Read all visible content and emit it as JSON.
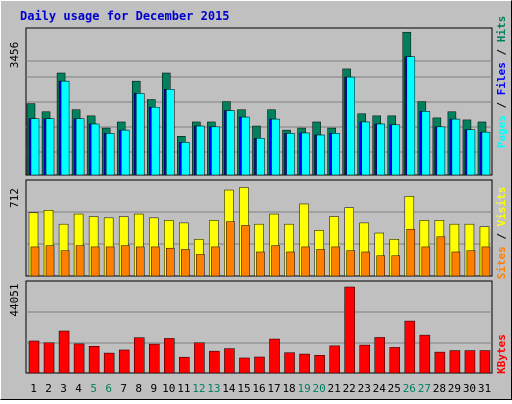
{
  "colors": {
    "background": "#c0c0c0",
    "plot_bg": "#c0c0c0",
    "grid": "#808080",
    "title": "#0000cc",
    "hits": "#00805c",
    "files": "#0000ff",
    "pages": "#00ffff",
    "visits": "#ffff00",
    "sites": "#ff8000",
    "kbytes": "#ff0000",
    "weekend_label": "#00805c",
    "weekday_label": "#000000"
  },
  "chart_data": [
    {
      "type": "bar",
      "title": "Daily usage for December 2015",
      "ymax_label": "3456",
      "ylabel": {
        "pages": "Pages",
        "files": "Files",
        "hits": "Hits",
        "sep": " / "
      },
      "categories": [
        "1",
        "2",
        "3",
        "4",
        "5",
        "6",
        "7",
        "8",
        "9",
        "10",
        "11",
        "12",
        "13",
        "14",
        "15",
        "16",
        "17",
        "18",
        "19",
        "20",
        "21",
        "22",
        "23",
        "24",
        "25",
        "26",
        "27",
        "28",
        "29",
        "30",
        "31"
      ],
      "weekend": [
        5,
        6,
        12,
        13,
        19,
        20,
        26,
        27
      ],
      "ylim": [
        0,
        3456
      ],
      "series": [
        {
          "name": "Hits",
          "values": [
            1750,
            1550,
            2500,
            1600,
            1450,
            1150,
            1300,
            2300,
            1850,
            2500,
            950,
            1300,
            1300,
            1800,
            1600,
            1200,
            1600,
            1100,
            1150,
            1300,
            1150,
            2600,
            1500,
            1450,
            1450,
            3500,
            1800,
            1400,
            1550,
            1350,
            1300
          ]
        },
        {
          "name": "Files",
          "values": [
            1380,
            1380,
            2300,
            1380,
            1250,
            1020,
            1100,
            2000,
            1660,
            2100,
            800,
            1200,
            1180,
            1580,
            1420,
            900,
            1370,
            1020,
            1030,
            980,
            1020,
            2400,
            1300,
            1250,
            1230,
            2900,
            1560,
            1180,
            1370,
            1110,
            1050
          ]
        },
        {
          "name": "Pages",
          "values": [
            1380,
            1380,
            2300,
            1380,
            1250,
            1020,
            1100,
            2000,
            1660,
            2100,
            800,
            1200,
            1180,
            1580,
            1420,
            900,
            1370,
            1020,
            1030,
            980,
            1020,
            2400,
            1300,
            1250,
            1230,
            2900,
            1560,
            1180,
            1370,
            1110,
            1050
          ]
        }
      ]
    },
    {
      "type": "bar",
      "ymax_label": "712",
      "ylabel": {
        "sites": "Sites",
        "visits": "Visits",
        "sep": " / "
      },
      "categories": [
        "1",
        "2",
        "3",
        "4",
        "5",
        "6",
        "7",
        "8",
        "9",
        "10",
        "11",
        "12",
        "13",
        "14",
        "15",
        "16",
        "17",
        "18",
        "19",
        "20",
        "21",
        "22",
        "23",
        "24",
        "25",
        "26",
        "27",
        "28",
        "29",
        "30",
        "31"
      ],
      "ylim": [
        0,
        712
      ],
      "series": [
        {
          "name": "Visits",
          "values": [
            500,
            520,
            410,
            490,
            470,
            460,
            470,
            490,
            460,
            440,
            420,
            290,
            440,
            680,
            700,
            410,
            490,
            410,
            570,
            360,
            470,
            540,
            420,
            340,
            290,
            630,
            440,
            440,
            410,
            410,
            390
          ]
        },
        {
          "name": "Sites",
          "values": [
            230,
            240,
            200,
            240,
            230,
            230,
            240,
            230,
            230,
            220,
            210,
            170,
            230,
            430,
            400,
            190,
            240,
            190,
            230,
            210,
            230,
            200,
            190,
            160,
            160,
            370,
            230,
            310,
            190,
            200,
            230
          ]
        }
      ]
    },
    {
      "type": "bar",
      "ymax_label": "44051",
      "ylabel": "KBytes",
      "categories": [
        "1",
        "2",
        "3",
        "4",
        "5",
        "6",
        "7",
        "8",
        "9",
        "10",
        "11",
        "12",
        "13",
        "14",
        "15",
        "16",
        "17",
        "18",
        "19",
        "20",
        "21",
        "22",
        "23",
        "24",
        "25",
        "26",
        "27",
        "28",
        "29",
        "30",
        "31"
      ],
      "ylim": [
        0,
        44051
      ],
      "series": [
        {
          "name": "KBytes",
          "values": [
            16400,
            15500,
            21500,
            14900,
            13700,
            10200,
            11800,
            18100,
            14800,
            17700,
            8100,
            15500,
            11200,
            12500,
            7700,
            8200,
            17400,
            10400,
            9700,
            9100,
            13900,
            44051,
            14300,
            18200,
            13100,
            26600,
            19400,
            10700,
            11500,
            11500,
            11500
          ]
        }
      ]
    }
  ]
}
